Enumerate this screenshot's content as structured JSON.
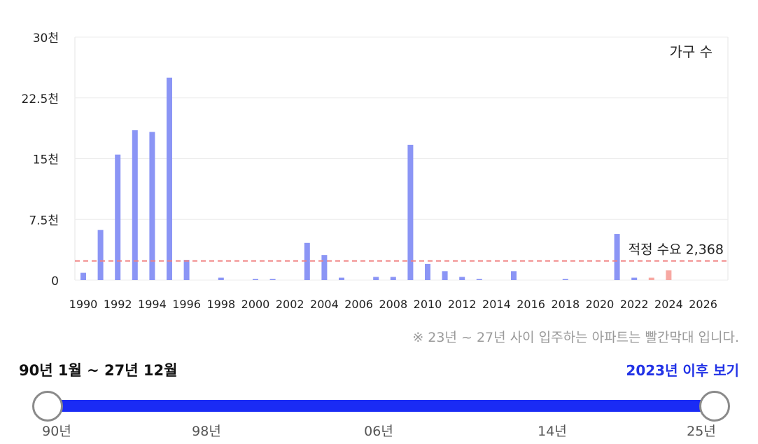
{
  "chart_data": {
    "type": "bar",
    "legend": "가구 수",
    "legend_placement": "top-right",
    "x": [
      1990,
      1991,
      1992,
      1993,
      1994,
      1995,
      1996,
      1997,
      1998,
      1999,
      2000,
      2001,
      2002,
      2003,
      2004,
      2005,
      2006,
      2007,
      2008,
      2009,
      2010,
      2011,
      2012,
      2013,
      2014,
      2015,
      2016,
      2017,
      2018,
      2019,
      2020,
      2021,
      2022,
      2023,
      2024,
      2025,
      2026,
      2027
    ],
    "values": [
      900,
      6200,
      15500,
      18500,
      18300,
      25000,
      2500,
      0,
      300,
      0,
      150,
      150,
      0,
      4600,
      3100,
      300,
      0,
      400,
      400,
      16700,
      2000,
      1100,
      400,
      150,
      0,
      1100,
      0,
      0,
      150,
      0,
      0,
      5700,
      300,
      300,
      1200,
      0,
      0,
      0
    ],
    "bar_colors": {
      "default": "#8b95f5",
      "highlight": "#f7a8a2"
    },
    "highlight_from": 2023,
    "x_ticks": [
      1990,
      1992,
      1994,
      1996,
      1998,
      2000,
      2002,
      2004,
      2006,
      2008,
      2010,
      2012,
      2014,
      2016,
      2018,
      2020,
      2022,
      2024,
      2026
    ],
    "y_ticks": [
      {
        "value": 0,
        "label": "0"
      },
      {
        "value": 7500,
        "label": "7.5천"
      },
      {
        "value": 15000,
        "label": "15천"
      },
      {
        "value": 22500,
        "label": "22.5천"
      },
      {
        "value": 30000,
        "label": "30천"
      }
    ],
    "ylim": [
      0,
      30000
    ],
    "grid": true,
    "reference_line": {
      "value": 2368,
      "label": "적정 수요 2,368",
      "color": "#f08080"
    }
  },
  "note": "※ 23년 ~ 27년 사이 입주하는 아파트는 빨간막대 입니다.",
  "range_label": "90년 1월 ~ 27년 12월",
  "after_link": "2023년 이후 보기",
  "slider": {
    "start_label": "90년",
    "end_label": "25년",
    "ticks": [
      "90년",
      "98년",
      "06년",
      "14년",
      "25년"
    ]
  }
}
